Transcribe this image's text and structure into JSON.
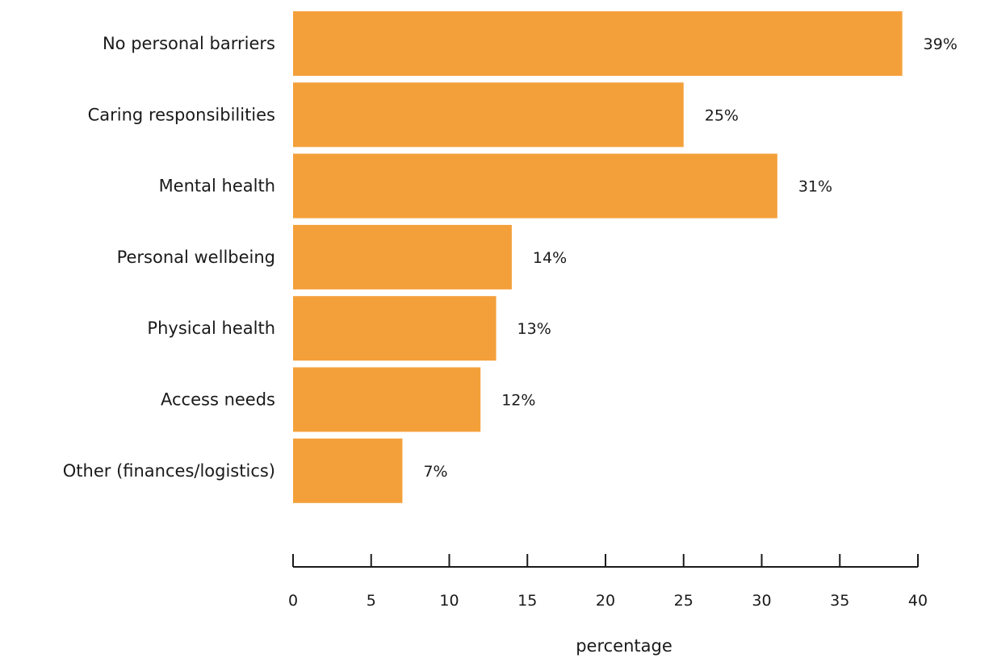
{
  "chart_data": {
    "type": "bar",
    "orientation": "horizontal",
    "categories": [
      "No personal barriers",
      "Caring responsibilities",
      "Mental health",
      "Personal wellbeing",
      "Physical health",
      "Access needs",
      "Other (finances/logistics)"
    ],
    "values": [
      39,
      25,
      31,
      14,
      13,
      12,
      7
    ],
    "value_labels": [
      "39%",
      "25%",
      "31%",
      "14%",
      "13%",
      "12%",
      "7%"
    ],
    "xlabel": "percentage",
    "ylabel": "",
    "xlim": [
      0,
      40
    ],
    "xticks": [
      0,
      5,
      10,
      15,
      20,
      25,
      30,
      35,
      40
    ],
    "grid": false,
    "bar_color": "#F4A03A"
  }
}
